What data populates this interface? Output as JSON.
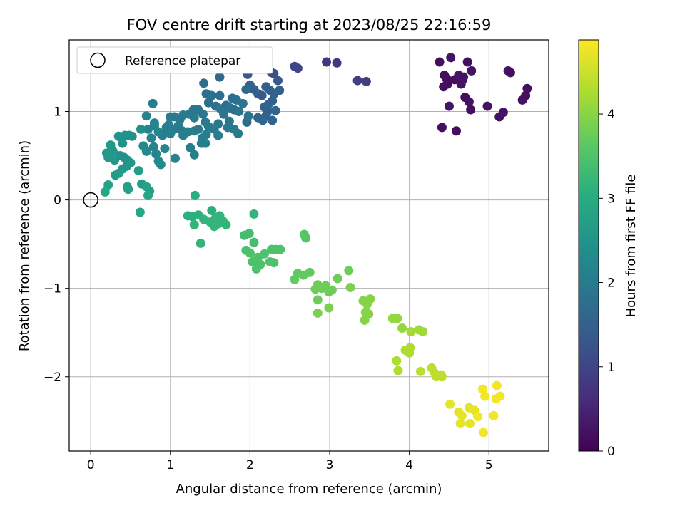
{
  "chart_data": {
    "type": "scatter",
    "title": "FOV centre drift starting at 2023/08/25 22:16:59",
    "xlabel": "Angular distance from reference (arcmin)",
    "ylabel": "Rotation from reference (arcmin)",
    "xlim": [
      -0.27,
      5.75
    ],
    "ylim": [
      -2.84,
      1.81
    ],
    "xticks": [
      0,
      1,
      2,
      3,
      4,
      5
    ],
    "yticks": [
      -2,
      -1,
      0,
      1
    ],
    "grid": true,
    "legend": {
      "position": "top-left",
      "entries": [
        "Reference platepar"
      ]
    },
    "reference_point": {
      "x": 0,
      "y": 0
    },
    "colorbar": {
      "label": "Hours from first FF file",
      "colormap": "viridis",
      "range": [
        0,
        4.88
      ],
      "ticks": [
        0,
        1,
        2,
        3,
        4
      ]
    },
    "points": [
      [
        4.38,
        1.56,
        0.2
      ],
      [
        4.44,
        1.41,
        0.2
      ],
      [
        4.52,
        1.61,
        0.25
      ],
      [
        4.57,
        1.36,
        0.2
      ],
      [
        4.62,
        1.41,
        0.3
      ],
      [
        4.67,
        1.36,
        0.3
      ],
      [
        4.73,
        1.56,
        0.2
      ],
      [
        4.78,
        1.46,
        0.25
      ],
      [
        4.48,
        1.31,
        0.2
      ],
      [
        4.43,
        1.28,
        0.2
      ],
      [
        4.65,
        1.31,
        0.25
      ],
      [
        4.7,
        1.16,
        0.2
      ],
      [
        4.75,
        1.11,
        0.25
      ],
      [
        4.77,
        1.02,
        0.2
      ],
      [
        4.5,
        1.06,
        0.3
      ],
      [
        4.41,
        0.82,
        0.2
      ],
      [
        4.59,
        0.78,
        0.2
      ],
      [
        4.98,
        1.06,
        0.25
      ],
      [
        5.13,
        0.94,
        0.2
      ],
      [
        5.18,
        0.99,
        0.25
      ],
      [
        5.24,
        1.46,
        0.3
      ],
      [
        5.27,
        1.44,
        0.2
      ],
      [
        5.42,
        1.13,
        0.25
      ],
      [
        5.46,
        1.18,
        0.2
      ],
      [
        5.48,
        1.26,
        0.2
      ],
      [
        4.47,
        1.37,
        0.2
      ],
      [
        4.68,
        1.39,
        0.25
      ],
      [
        2.96,
        1.56,
        0.8
      ],
      [
        3.09,
        1.55,
        0.8
      ],
      [
        3.35,
        1.35,
        0.9
      ],
      [
        3.46,
        1.34,
        0.9
      ],
      [
        2.56,
        1.51,
        1.0
      ],
      [
        2.6,
        1.49,
        1.0
      ],
      [
        2.27,
        1.44,
        1.2
      ],
      [
        2.3,
        1.43,
        1.2
      ],
      [
        1.97,
        1.42,
        1.4
      ],
      [
        2.0,
        1.3,
        1.5
      ],
      [
        2.05,
        1.25,
        1.5
      ],
      [
        2.1,
        1.2,
        1.5
      ],
      [
        2.15,
        1.18,
        1.4
      ],
      [
        2.2,
        1.28,
        1.5
      ],
      [
        2.25,
        1.24,
        1.5
      ],
      [
        2.3,
        1.2,
        1.5
      ],
      [
        2.35,
        1.35,
        1.4
      ],
      [
        2.37,
        1.24,
        1.5
      ],
      [
        2.18,
        1.05,
        1.5
      ],
      [
        2.23,
        1.08,
        1.6
      ],
      [
        2.28,
        1.12,
        1.5
      ],
      [
        2.32,
        1.01,
        1.6
      ],
      [
        2.2,
        0.95,
        1.5
      ],
      [
        2.1,
        0.93,
        1.6
      ],
      [
        2.16,
        0.9,
        1.6
      ],
      [
        2.28,
        0.9,
        1.6
      ],
      [
        1.96,
        0.88,
        1.7
      ],
      [
        2.22,
        1.0,
        1.5
      ],
      [
        1.62,
        1.39,
        1.7
      ],
      [
        1.42,
        1.32,
        1.8
      ],
      [
        1.52,
        1.18,
        1.8
      ],
      [
        1.62,
        1.18,
        1.8
      ],
      [
        1.45,
        1.2,
        1.8
      ],
      [
        1.48,
        1.1,
        1.8
      ],
      [
        1.57,
        1.06,
        1.8
      ],
      [
        1.63,
        1.03,
        1.9
      ],
      [
        1.7,
        1.07,
        1.8
      ],
      [
        1.75,
        1.04,
        1.9
      ],
      [
        1.8,
        1.02,
        1.8
      ],
      [
        1.86,
        1.0,
        1.9
      ],
      [
        1.78,
        1.15,
        1.8
      ],
      [
        1.83,
        1.13,
        1.8
      ],
      [
        1.91,
        1.09,
        1.9
      ],
      [
        1.95,
        1.25,
        1.7
      ],
      [
        1.98,
        0.95,
        1.9
      ],
      [
        1.67,
        0.97,
        1.9
      ],
      [
        1.74,
        0.89,
        1.9
      ],
      [
        1.8,
        0.8,
        2.0
      ],
      [
        1.85,
        0.75,
        2.0
      ],
      [
        1.72,
        0.82,
        2.0
      ],
      [
        1.6,
        0.86,
        1.9
      ],
      [
        1.55,
        0.8,
        2.0
      ],
      [
        1.48,
        0.83,
        2.0
      ],
      [
        1.44,
        0.88,
        2.0
      ],
      [
        1.41,
        0.97,
        1.9
      ],
      [
        1.35,
        1.02,
        1.9
      ],
      [
        1.29,
        1.02,
        1.9
      ],
      [
        1.3,
        0.93,
        2.0
      ],
      [
        1.24,
        0.97,
        2.0
      ],
      [
        1.16,
        0.96,
        2.0
      ],
      [
        1.12,
        0.91,
        2.0
      ],
      [
        1.05,
        0.94,
        2.0
      ],
      [
        1.0,
        0.94,
        2.0
      ],
      [
        0.98,
        0.85,
        2.1
      ],
      [
        1.05,
        0.8,
        2.1
      ],
      [
        1.1,
        0.84,
        2.0
      ],
      [
        1.15,
        0.78,
        2.0
      ],
      [
        1.22,
        0.77,
        2.1
      ],
      [
        1.3,
        0.78,
        2.1
      ],
      [
        1.35,
        0.8,
        2.0
      ],
      [
        1.4,
        0.7,
        2.1
      ],
      [
        1.25,
        0.59,
        2.1
      ],
      [
        1.3,
        0.51,
        2.1
      ],
      [
        1.39,
        0.64,
        2.1
      ],
      [
        1.44,
        0.64,
        2.1
      ],
      [
        1.0,
        0.75,
        2.1
      ],
      [
        0.95,
        0.82,
        2.1
      ],
      [
        0.9,
        0.73,
        2.1
      ],
      [
        0.85,
        0.77,
        2.2
      ],
      [
        0.8,
        0.87,
        2.2
      ],
      [
        0.78,
        1.09,
        2.1
      ],
      [
        0.7,
        0.95,
        2.2
      ],
      [
        0.72,
        0.8,
        2.2
      ],
      [
        0.76,
        0.7,
        2.2
      ],
      [
        0.79,
        0.6,
        2.2
      ],
      [
        0.82,
        0.52,
        2.2
      ],
      [
        0.85,
        0.44,
        2.3
      ],
      [
        0.88,
        0.4,
        2.3
      ],
      [
        0.93,
        0.58,
        2.2
      ],
      [
        1.06,
        0.47,
        2.2
      ],
      [
        1.16,
        0.73,
        2.1
      ],
      [
        1.45,
        0.74,
        2.1
      ],
      [
        1.6,
        0.73,
        2.1
      ],
      [
        0.66,
        0.61,
        2.3
      ],
      [
        0.7,
        0.55,
        2.3
      ],
      [
        0.8,
        0.84,
        2.2
      ],
      [
        0.63,
        0.8,
        2.4
      ],
      [
        0.48,
        0.73,
        2.5
      ],
      [
        0.52,
        0.72,
        2.5
      ],
      [
        0.43,
        0.73,
        2.5
      ],
      [
        0.35,
        0.72,
        2.5
      ],
      [
        0.4,
        0.64,
        2.5
      ],
      [
        0.25,
        0.62,
        2.6
      ],
      [
        0.2,
        0.53,
        2.6
      ],
      [
        0.28,
        0.55,
        2.6
      ],
      [
        0.22,
        0.48,
        2.6
      ],
      [
        0.3,
        0.45,
        2.6
      ],
      [
        0.37,
        0.5,
        2.5
      ],
      [
        0.42,
        0.48,
        2.5
      ],
      [
        0.46,
        0.45,
        2.5
      ],
      [
        0.5,
        0.42,
        2.6
      ],
      [
        0.45,
        0.38,
        2.6
      ],
      [
        0.4,
        0.35,
        2.6
      ],
      [
        0.35,
        0.3,
        2.7
      ],
      [
        0.31,
        0.28,
        2.7
      ],
      [
        0.6,
        0.33,
        2.7
      ],
      [
        0.64,
        0.18,
        2.7
      ],
      [
        0.7,
        0.15,
        2.8
      ],
      [
        0.74,
        0.1,
        2.8
      ],
      [
        0.46,
        0.15,
        2.8
      ],
      [
        0.47,
        0.12,
        2.8
      ],
      [
        0.22,
        0.17,
        2.8
      ],
      [
        0.18,
        0.09,
        2.9
      ],
      [
        0.62,
        -0.14,
        2.9
      ],
      [
        0.72,
        0.05,
        2.9
      ],
      [
        1.31,
        0.05,
        3.1
      ],
      [
        1.22,
        -0.18,
        3.1
      ],
      [
        1.28,
        -0.19,
        3.1
      ],
      [
        1.35,
        -0.17,
        3.1
      ],
      [
        1.42,
        -0.22,
        3.2
      ],
      [
        1.3,
        -0.28,
        3.2
      ],
      [
        1.38,
        -0.49,
        3.2
      ],
      [
        1.52,
        -0.12,
        3.1
      ],
      [
        1.5,
        -0.25,
        3.2
      ],
      [
        1.55,
        -0.3,
        3.2
      ],
      [
        1.6,
        -0.27,
        3.2
      ],
      [
        1.57,
        -0.2,
        3.2
      ],
      [
        1.62,
        -0.18,
        3.2
      ],
      [
        1.66,
        -0.24,
        3.2
      ],
      [
        1.7,
        -0.28,
        3.2
      ],
      [
        2.05,
        -0.16,
        3.2
      ],
      [
        1.93,
        -0.4,
        3.4
      ],
      [
        1.99,
        -0.38,
        3.4
      ],
      [
        2.05,
        -0.48,
        3.4
      ],
      [
        1.95,
        -0.57,
        3.5
      ],
      [
        2.0,
        -0.6,
        3.5
      ],
      [
        2.03,
        -0.7,
        3.5
      ],
      [
        2.1,
        -0.65,
        3.5
      ],
      [
        2.08,
        -0.78,
        3.5
      ],
      [
        2.13,
        -0.73,
        3.5
      ],
      [
        2.18,
        -0.61,
        3.5
      ],
      [
        2.27,
        -0.56,
        3.5
      ],
      [
        2.32,
        -0.56,
        3.5
      ],
      [
        2.38,
        -0.56,
        3.5
      ],
      [
        2.25,
        -0.7,
        3.5
      ],
      [
        2.3,
        -0.71,
        3.5
      ],
      [
        2.68,
        -0.39,
        3.6
      ],
      [
        2.7,
        -0.43,
        3.6
      ],
      [
        2.56,
        -0.9,
        3.7
      ],
      [
        2.6,
        -0.83,
        3.7
      ],
      [
        2.67,
        -0.85,
        3.7
      ],
      [
        2.75,
        -0.82,
        3.7
      ],
      [
        2.82,
        -1.01,
        3.8
      ],
      [
        2.85,
        -0.96,
        3.8
      ],
      [
        2.9,
        -1.0,
        3.8
      ],
      [
        2.95,
        -0.97,
        3.8
      ],
      [
        2.99,
        -1.04,
        3.8
      ],
      [
        3.03,
        -1.02,
        3.8
      ],
      [
        2.85,
        -1.13,
        3.8
      ],
      [
        2.85,
        -1.28,
        3.9
      ],
      [
        2.99,
        -1.22,
        3.9
      ],
      [
        3.1,
        -0.89,
        3.8
      ],
      [
        3.24,
        -0.8,
        3.8
      ],
      [
        3.26,
        -0.99,
        3.9
      ],
      [
        3.42,
        -1.14,
        4.0
      ],
      [
        3.47,
        -1.18,
        4.0
      ],
      [
        3.51,
        -1.12,
        4.0
      ],
      [
        3.45,
        -1.27,
        4.0
      ],
      [
        3.49,
        -1.29,
        4.0
      ],
      [
        3.44,
        -1.36,
        4.0
      ],
      [
        3.79,
        -1.34,
        4.1
      ],
      [
        3.85,
        -1.34,
        4.1
      ],
      [
        3.91,
        -1.45,
        4.1
      ],
      [
        4.02,
        -1.49,
        4.2
      ],
      [
        4.12,
        -1.47,
        4.2
      ],
      [
        4.17,
        -1.49,
        4.2
      ],
      [
        3.84,
        -1.82,
        4.3
      ],
      [
        3.86,
        -1.93,
        4.3
      ],
      [
        3.95,
        -1.7,
        4.3
      ],
      [
        4.0,
        -1.73,
        4.3
      ],
      [
        4.01,
        -1.67,
        4.3
      ],
      [
        4.14,
        -1.94,
        4.4
      ],
      [
        4.28,
        -1.9,
        4.4
      ],
      [
        4.32,
        -1.96,
        4.4
      ],
      [
        4.34,
        -2.0,
        4.4
      ],
      [
        4.41,
        -2.0,
        4.4
      ],
      [
        4.51,
        -2.31,
        4.7
      ],
      [
        4.62,
        -2.4,
        4.7
      ],
      [
        4.66,
        -2.44,
        4.7
      ],
      [
        4.64,
        -2.53,
        4.7
      ],
      [
        4.76,
        -2.53,
        4.7
      ],
      [
        4.75,
        -2.35,
        4.7
      ],
      [
        4.82,
        -2.38,
        4.7
      ],
      [
        4.86,
        -2.45,
        4.8
      ],
      [
        4.92,
        -2.14,
        4.8
      ],
      [
        4.95,
        -2.22,
        4.8
      ],
      [
        4.93,
        -2.63,
        4.8
      ],
      [
        5.06,
        -2.44,
        4.8
      ],
      [
        5.09,
        -2.25,
        4.8
      ],
      [
        5.1,
        -2.1,
        4.8
      ],
      [
        5.14,
        -2.22,
        4.8
      ],
      [
        4.4,
        -1.98,
        4.4
      ]
    ]
  }
}
